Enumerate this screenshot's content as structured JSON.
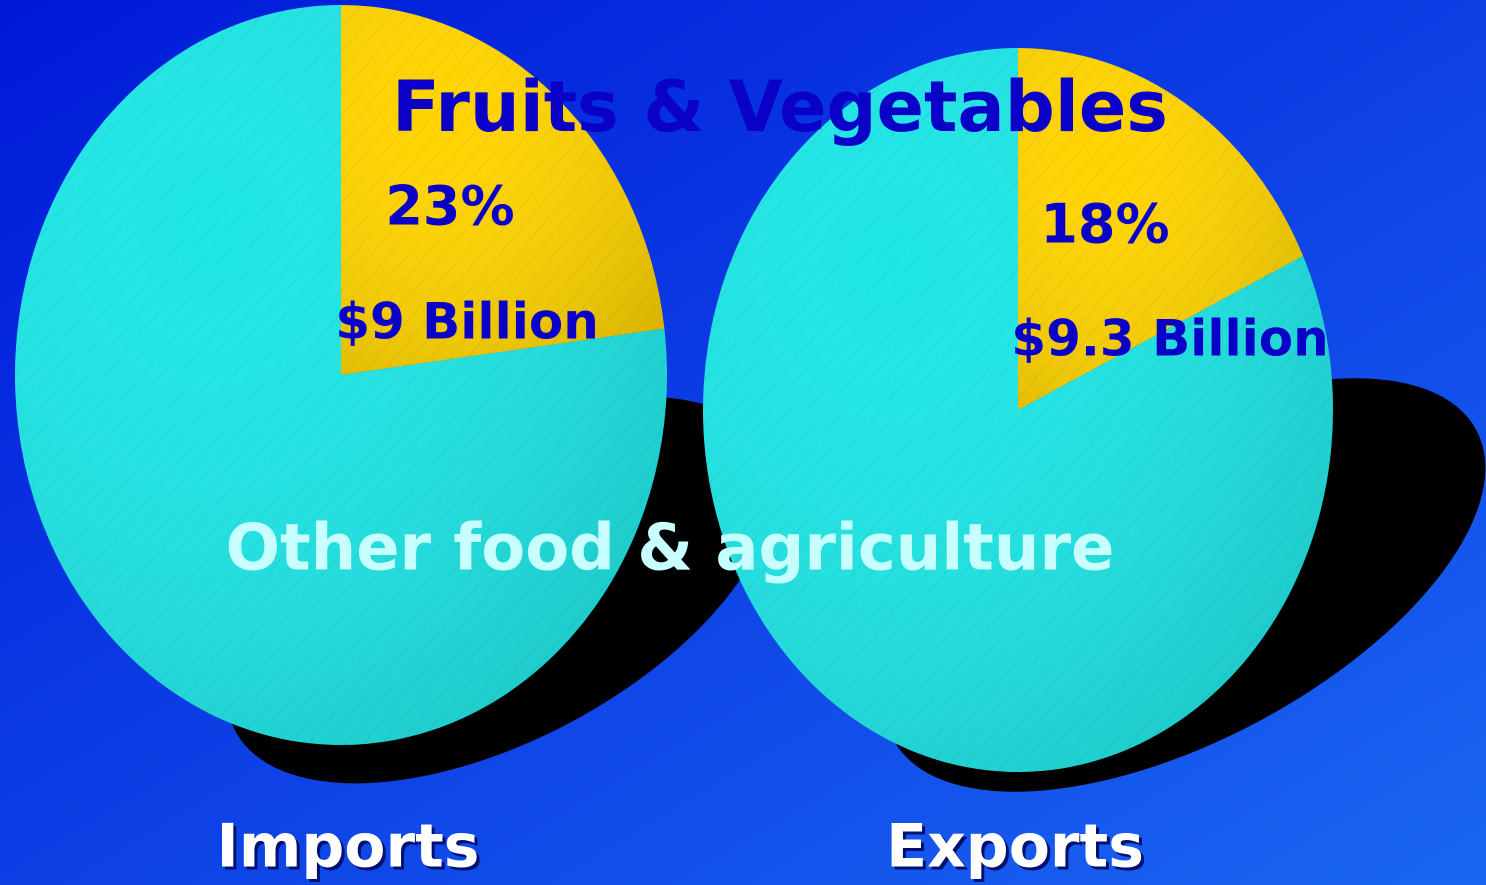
{
  "chart_data": {
    "type": "pie",
    "categories": [
      "Fruits & Vegetables",
      "Other food & agriculture"
    ],
    "colors": [
      "#ffd400",
      "#1fe6e6"
    ],
    "series": [
      {
        "name": "Imports",
        "values": [
          23,
          77
        ],
        "value_labels": [
          "23%",
          null
        ],
        "annotation": "$9 Billion"
      },
      {
        "name": "Exports",
        "values": [
          18,
          82
        ],
        "value_labels": [
          "18%",
          null
        ],
        "annotation": "$9.3 Billion"
      }
    ]
  }
}
